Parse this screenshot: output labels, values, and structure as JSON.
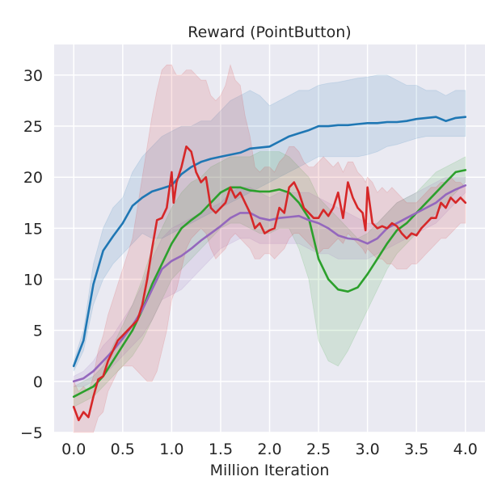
{
  "chart_data": {
    "type": "line",
    "title": "Reward (PointButton)",
    "xlabel": "Million Iteration",
    "ylabel": "",
    "xlim": [
      -0.2,
      4.2
    ],
    "ylim": [
      -5,
      33
    ],
    "xticks": [
      0.0,
      0.5,
      1.0,
      1.5,
      2.0,
      2.5,
      3.0,
      3.5,
      4.0
    ],
    "xtick_labels": [
      "0.0",
      "0.5",
      "1.0",
      "1.5",
      "2.0",
      "2.5",
      "3.0",
      "3.5",
      "4.0"
    ],
    "yticks": [
      -5,
      0,
      5,
      10,
      15,
      20,
      25,
      30
    ],
    "ytick_labels": [
      "−5",
      "0",
      "5",
      "10",
      "15",
      "20",
      "25",
      "30"
    ],
    "grid": true,
    "background": "#eaeaf2",
    "series": [
      {
        "color": "#1f77b4",
        "x": [
          0.0,
          0.1,
          0.2,
          0.3,
          0.4,
          0.5,
          0.6,
          0.7,
          0.8,
          0.9,
          1.0,
          1.1,
          1.2,
          1.3,
          1.4,
          1.5,
          1.6,
          1.7,
          1.8,
          1.9,
          2.0,
          2.1,
          2.2,
          2.3,
          2.4,
          2.5,
          2.6,
          2.7,
          2.8,
          2.9,
          3.0,
          3.1,
          3.2,
          3.3,
          3.4,
          3.5,
          3.6,
          3.7,
          3.8,
          3.9,
          4.0
        ],
        "y": [
          1.5,
          4.0,
          9.5,
          12.8,
          14.2,
          15.5,
          17.2,
          18.0,
          18.6,
          18.9,
          19.2,
          20.3,
          21.0,
          21.5,
          21.8,
          22.0,
          22.2,
          22.4,
          22.8,
          22.9,
          23.0,
          23.5,
          24.0,
          24.3,
          24.6,
          25.0,
          25.0,
          25.1,
          25.1,
          25.2,
          25.3,
          25.3,
          25.4,
          25.4,
          25.5,
          25.7,
          25.8,
          25.9,
          25.5,
          25.8,
          25.9
        ],
        "lower": [
          1.0,
          3.0,
          7.5,
          10.0,
          11.5,
          12.5,
          13.5,
          14.5,
          14.0,
          14.0,
          14.5,
          15.0,
          15.5,
          16.0,
          16.5,
          17.0,
          17.5,
          18.0,
          18.5,
          19.0,
          19.5,
          20.0,
          20.5,
          21.0,
          21.5,
          22.0,
          22.0,
          22.0,
          22.0,
          22.0,
          22.2,
          22.5,
          23.0,
          23.2,
          23.5,
          23.8,
          24.0,
          24.0,
          24.0,
          24.0,
          24.0
        ],
        "upper": [
          2.0,
          5.0,
          11.5,
          15.0,
          17.0,
          18.0,
          20.5,
          22.0,
          23.0,
          24.0,
          24.5,
          25.0,
          25.0,
          25.5,
          25.5,
          26.5,
          27.5,
          28.0,
          28.5,
          28.0,
          27.0,
          27.5,
          28.0,
          28.5,
          28.5,
          29.0,
          29.2,
          29.3,
          29.5,
          29.7,
          29.8,
          30.0,
          30.0,
          29.5,
          29.0,
          29.0,
          28.5,
          28.5,
          28.0,
          28.5,
          28.5
        ]
      },
      {
        "color": "#2ca02c",
        "x": [
          0.0,
          0.1,
          0.2,
          0.3,
          0.4,
          0.5,
          0.6,
          0.7,
          0.8,
          0.9,
          1.0,
          1.1,
          1.2,
          1.3,
          1.4,
          1.5,
          1.6,
          1.7,
          1.8,
          1.9,
          2.0,
          2.1,
          2.2,
          2.3,
          2.4,
          2.5,
          2.6,
          2.7,
          2.8,
          2.9,
          3.0,
          3.1,
          3.2,
          3.3,
          3.4,
          3.5,
          3.6,
          3.7,
          3.8,
          3.9,
          4.0
        ],
        "y": [
          -1.5,
          -1.0,
          -0.5,
          0.5,
          2.0,
          3.5,
          5.0,
          7.0,
          9.5,
          11.5,
          13.5,
          15.0,
          15.8,
          16.5,
          17.5,
          18.5,
          19.0,
          19.0,
          18.7,
          18.6,
          18.6,
          18.8,
          18.5,
          17.5,
          16.0,
          12.0,
          10.0,
          9.0,
          8.8,
          9.2,
          10.5,
          12.0,
          13.5,
          14.8,
          15.5,
          16.5,
          17.5,
          18.5,
          19.5,
          20.5,
          20.7
        ],
        "lower": [
          -2.5,
          -2.0,
          -1.5,
          -0.5,
          0.5,
          1.5,
          2.5,
          4.0,
          6.0,
          8.0,
          10.0,
          11.0,
          12.0,
          13.0,
          14.0,
          15.0,
          15.5,
          15.5,
          15.0,
          14.5,
          14.5,
          15.0,
          15.0,
          13.0,
          10.0,
          4.0,
          2.0,
          1.5,
          3.0,
          5.0,
          7.0,
          9.0,
          11.0,
          12.5,
          13.5,
          14.5,
          15.5,
          16.5,
          17.5,
          18.5,
          19.5
        ],
        "upper": [
          -0.5,
          0.0,
          0.5,
          1.5,
          3.5,
          5.5,
          7.5,
          10.0,
          13.0,
          15.0,
          17.0,
          18.5,
          19.5,
          20.0,
          21.0,
          21.5,
          22.0,
          22.0,
          22.0,
          22.5,
          22.5,
          22.5,
          22.0,
          21.0,
          20.0,
          18.0,
          17.0,
          16.0,
          15.0,
          14.0,
          14.5,
          15.5,
          16.5,
          17.5,
          18.0,
          18.5,
          19.5,
          20.5,
          21.0,
          21.5,
          22.0
        ]
      },
      {
        "color": "#9467bd",
        "x": [
          0.0,
          0.1,
          0.2,
          0.3,
          0.4,
          0.5,
          0.6,
          0.7,
          0.8,
          0.9,
          1.0,
          1.1,
          1.2,
          1.3,
          1.4,
          1.5,
          1.6,
          1.7,
          1.8,
          1.9,
          2.0,
          2.1,
          2.2,
          2.3,
          2.4,
          2.5,
          2.6,
          2.7,
          2.8,
          2.9,
          3.0,
          3.1,
          3.2,
          3.3,
          3.4,
          3.5,
          3.6,
          3.7,
          3.8,
          3.9,
          4.0
        ],
        "y": [
          0.0,
          0.3,
          1.0,
          2.0,
          3.0,
          4.2,
          5.5,
          7.0,
          9.0,
          11.0,
          11.8,
          12.3,
          13.0,
          13.8,
          14.5,
          15.2,
          16.0,
          16.5,
          16.5,
          16.0,
          15.8,
          16.0,
          16.1,
          16.2,
          15.8,
          15.5,
          15.0,
          14.3,
          14.0,
          13.9,
          13.5,
          14.0,
          15.0,
          15.5,
          16.0,
          16.5,
          17.0,
          17.5,
          18.3,
          18.8,
          19.2
        ],
        "lower": [
          -0.5,
          -0.5,
          0.0,
          0.5,
          1.5,
          2.5,
          3.5,
          4.5,
          6.0,
          8.0,
          8.5,
          9.0,
          10.0,
          11.0,
          12.0,
          13.0,
          13.5,
          14.0,
          14.0,
          13.5,
          13.5,
          13.5,
          13.5,
          13.5,
          13.0,
          12.5,
          12.5,
          12.0,
          12.0,
          12.0,
          12.0,
          12.5,
          13.0,
          13.5,
          14.0,
          14.5,
          15.0,
          15.5,
          16.5,
          17.5,
          18.5
        ],
        "upper": [
          0.5,
          1.0,
          2.0,
          3.5,
          4.5,
          6.0,
          7.5,
          9.5,
          12.0,
          14.0,
          15.0,
          15.5,
          16.0,
          16.5,
          17.0,
          17.5,
          18.5,
          19.0,
          19.0,
          18.5,
          18.0,
          18.5,
          18.5,
          18.5,
          18.5,
          18.0,
          17.5,
          17.0,
          16.5,
          16.0,
          15.5,
          15.5,
          16.5,
          17.5,
          18.0,
          18.5,
          19.0,
          19.5,
          20.0,
          20.0,
          20.0
        ]
      },
      {
        "color": "#d62728",
        "x": [
          0.0,
          0.05,
          0.1,
          0.15,
          0.2,
          0.25,
          0.3,
          0.35,
          0.4,
          0.45,
          0.5,
          0.55,
          0.6,
          0.65,
          0.7,
          0.75,
          0.8,
          0.85,
          0.9,
          0.95,
          1.0,
          1.02,
          1.05,
          1.1,
          1.15,
          1.2,
          1.25,
          1.3,
          1.35,
          1.4,
          1.45,
          1.5,
          1.55,
          1.6,
          1.65,
          1.7,
          1.75,
          1.8,
          1.85,
          1.9,
          1.95,
          2.0,
          2.05,
          2.1,
          2.15,
          2.2,
          2.25,
          2.3,
          2.35,
          2.4,
          2.45,
          2.5,
          2.55,
          2.6,
          2.65,
          2.7,
          2.75,
          2.8,
          2.85,
          2.9,
          2.95,
          2.98,
          3.0,
          3.05,
          3.1,
          3.15,
          3.2,
          3.25,
          3.3,
          3.35,
          3.4,
          3.45,
          3.5,
          3.55,
          3.6,
          3.65,
          3.7,
          3.75,
          3.8,
          3.85,
          3.9,
          3.95,
          4.0
        ],
        "y": [
          -2.5,
          -3.8,
          -3.0,
          -3.5,
          -1.5,
          0.2,
          0.5,
          2.0,
          3.0,
          4.0,
          4.5,
          5.0,
          5.5,
          6.0,
          7.5,
          10.0,
          13.0,
          15.8,
          16.0,
          17.0,
          20.5,
          17.5,
          19.5,
          21.0,
          23.0,
          22.5,
          20.5,
          19.5,
          20.0,
          17.0,
          16.5,
          17.0,
          17.5,
          19.0,
          18.0,
          18.5,
          17.5,
          16.5,
          15.0,
          15.5,
          14.5,
          14.8,
          15.0,
          17.0,
          16.5,
          19.0,
          19.5,
          18.5,
          17.0,
          16.5,
          16.0,
          16.0,
          16.8,
          16.2,
          17.0,
          18.5,
          16.0,
          19.5,
          18.0,
          17.0,
          16.5,
          14.8,
          19.0,
          15.5,
          15.0,
          15.2,
          15.0,
          15.5,
          15.2,
          14.5,
          14.0,
          14.5,
          14.3,
          15.0,
          15.5,
          16.0,
          16.0,
          17.5,
          17.0,
          18.0,
          17.5,
          18.0,
          17.5
        ],
        "lower": [
          -5.0,
          -5.0,
          -5.0,
          -5.0,
          -5.0,
          -3.5,
          -3.0,
          -1.0,
          0.0,
          1.0,
          1.5,
          1.5,
          1.5,
          1.0,
          0.5,
          0.0,
          0.0,
          1.0,
          3.0,
          5.0,
          8.0,
          8.5,
          9.0,
          11.0,
          13.0,
          14.0,
          14.5,
          15.0,
          14.5,
          13.0,
          12.0,
          12.5,
          13.0,
          14.0,
          14.5,
          14.0,
          13.5,
          13.0,
          12.0,
          12.0,
          12.5,
          12.5,
          12.0,
          12.5,
          13.0,
          14.0,
          14.5,
          14.5,
          14.0,
          13.5,
          13.0,
          12.5,
          13.0,
          13.0,
          13.5,
          14.0,
          13.5,
          14.5,
          14.0,
          13.5,
          13.0,
          12.5,
          13.0,
          12.5,
          12.0,
          12.0,
          11.5,
          11.5,
          11.0,
          11.0,
          11.0,
          11.5,
          11.5,
          12.0,
          12.5,
          13.0,
          13.5,
          14.0,
          14.0,
          14.5,
          15.0,
          15.5,
          15.5
        ],
        "upper": [
          0.0,
          -1.0,
          -0.5,
          -1.0,
          0.5,
          3.0,
          4.5,
          6.5,
          8.0,
          9.5,
          11.0,
          12.5,
          14.0,
          17.0,
          20.0,
          23.0,
          26.0,
          28.5,
          30.5,
          31.0,
          31.0,
          30.5,
          30.0,
          30.0,
          30.5,
          30.5,
          30.0,
          29.5,
          29.5,
          28.0,
          27.5,
          28.0,
          29.0,
          31.0,
          29.5,
          29.0,
          26.0,
          24.0,
          21.0,
          20.5,
          21.0,
          21.0,
          20.5,
          21.5,
          22.0,
          23.0,
          23.0,
          22.5,
          21.5,
          21.0,
          21.0,
          21.5,
          22.0,
          21.5,
          21.0,
          21.5,
          20.5,
          21.5,
          21.5,
          20.5,
          20.0,
          19.5,
          20.0,
          19.5,
          18.5,
          19.0,
          18.5,
          19.0,
          18.5,
          18.0,
          17.5,
          17.5,
          17.5,
          18.0,
          18.5,
          19.0,
          19.0,
          19.5,
          19.5,
          20.0,
          19.5,
          19.5,
          19.0
        ]
      }
    ]
  }
}
